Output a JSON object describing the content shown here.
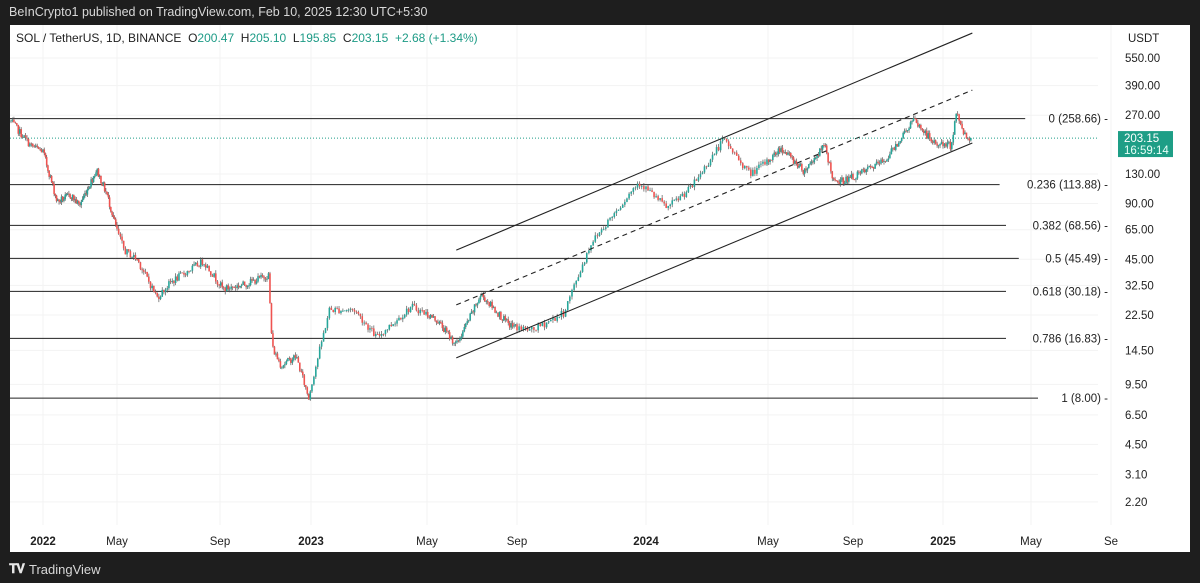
{
  "header": {
    "published": "BeInCrypto1 published on TradingView.com, Feb 10, 2025 12:30 UTC+5:30"
  },
  "legend": {
    "symbol": "SOL / TetherUS, 1D, BINANCE",
    "open_label": "O",
    "open": "200.47",
    "high_label": "H",
    "high": "205.10",
    "low_label": "L",
    "low": "195.85",
    "close_label": "C",
    "close": "203.15",
    "change": "+2.68 (+1.34%)"
  },
  "footer": {
    "brand": "TradingView"
  },
  "colors": {
    "up": "#26a69a",
    "down": "#ef5350",
    "price_tag": "#1e9e86"
  },
  "chart_data": {
    "type": "candlestick",
    "title": "SOL / TetherUS, 1D, BINANCE",
    "yscale": "log",
    "ylabel": "USDT",
    "ylim": [
      1.8,
      800
    ],
    "y_ticks": [
      "550.00",
      "390.00",
      "270.00",
      "130.00",
      "90.00",
      "65.00",
      "45.00",
      "32.50",
      "22.50",
      "14.50",
      "9.50",
      "6.50",
      "4.50",
      "3.10",
      "2.20"
    ],
    "x_ticks": [
      {
        "label": "2022",
        "date": "2022-01-01",
        "bold": true
      },
      {
        "label": "May",
        "date": "2022-05-01"
      },
      {
        "label": "Sep",
        "date": "2022-09-01"
      },
      {
        "label": "2023",
        "date": "2023-01-01",
        "bold": true
      },
      {
        "label": "May",
        "date": "2023-05-01"
      },
      {
        "label": "Sep",
        "date": "2023-09-01"
      },
      {
        "label": "2024",
        "date": "2024-01-01",
        "bold": true
      },
      {
        "label": "May",
        "date": "2024-05-01"
      },
      {
        "label": "Sep",
        "date": "2024-09-01"
      },
      {
        "label": "2025",
        "date": "2025-01-01",
        "bold": true
      },
      {
        "label": "May",
        "date": "2025-05-01"
      },
      {
        "label": "Se",
        "date": "2025-09-01"
      }
    ],
    "last_price": {
      "value": 203.15,
      "label": "203.15",
      "countdown": "16:59:14"
    },
    "price_path": [
      [
        "2021-11-18",
        250
      ],
      [
        "2021-12-15",
        185
      ],
      [
        "2022-01-01",
        172
      ],
      [
        "2022-01-24",
        92
      ],
      [
        "2022-02-15",
        100
      ],
      [
        "2022-03-01",
        88
      ],
      [
        "2022-03-29",
        137
      ],
      [
        "2022-04-15",
        100
      ],
      [
        "2022-05-10",
        50
      ],
      [
        "2022-05-25",
        45
      ],
      [
        "2022-06-18",
        28
      ],
      [
        "2022-07-05",
        34
      ],
      [
        "2022-08-12",
        44
      ],
      [
        "2022-09-05",
        31
      ],
      [
        "2022-10-05",
        33
      ],
      [
        "2022-11-05",
        37
      ],
      [
        "2022-11-10",
        15
      ],
      [
        "2022-11-22",
        12
      ],
      [
        "2022-12-12",
        13.5
      ],
      [
        "2022-12-29",
        8.0
      ],
      [
        "2023-01-20",
        24
      ],
      [
        "2023-02-15",
        24
      ],
      [
        "2023-03-10",
        17
      ],
      [
        "2023-04-15",
        25
      ],
      [
        "2023-05-15",
        21
      ],
      [
        "2023-06-10",
        15.5
      ],
      [
        "2023-07-14",
        29
      ],
      [
        "2023-08-20",
        20
      ],
      [
        "2023-09-15",
        18.5
      ],
      [
        "2023-10-15",
        23
      ],
      [
        "2023-11-10",
        55
      ],
      [
        "2023-12-25",
        118
      ],
      [
        "2024-01-22",
        85
      ],
      [
        "2024-02-15",
        110
      ],
      [
        "2024-03-18",
        200
      ],
      [
        "2024-04-13",
        130
      ],
      [
        "2024-05-20",
        180
      ],
      [
        "2024-06-22",
        135
      ],
      [
        "2024-07-22",
        185
      ],
      [
        "2024-08-05",
        115
      ],
      [
        "2024-09-07",
        128
      ],
      [
        "2024-10-15",
        155
      ],
      [
        "2024-11-22",
        255
      ],
      [
        "2024-12-20",
        190
      ],
      [
        "2025-01-12",
        185
      ],
      [
        "2025-01-19",
        275
      ],
      [
        "2025-02-03",
        200
      ],
      [
        "2025-02-09",
        203.15
      ]
    ],
    "fib_levels": [
      {
        "label": "0 (258.66)",
        "price": 258.66
      },
      {
        "label": "0.236 (113.88)",
        "price": 113.88
      },
      {
        "label": "0.382 (68.56)",
        "price": 68.56
      },
      {
        "label": "0.5 (45.49)",
        "price": 45.49
      },
      {
        "label": "0.618 (30.18)",
        "price": 30.18
      },
      {
        "label": "0.786 (16.83)",
        "price": 16.83
      },
      {
        "label": "1 (8.00)",
        "price": 8.0
      }
    ],
    "trend_channel": [
      {
        "name": "upper",
        "style": "solid",
        "from": [
          "2023-06-10",
          50.4
        ],
        "to": [
          "2025-02-10",
          750
        ]
      },
      {
        "name": "middle",
        "style": "dashed",
        "from": [
          "2023-06-10",
          25.5
        ],
        "to": [
          "2025-02-10",
          369
        ]
      },
      {
        "name": "lower",
        "style": "solid",
        "from": [
          "2023-06-10",
          13.2
        ],
        "to": [
          "2025-02-10",
          191
        ]
      }
    ]
  }
}
